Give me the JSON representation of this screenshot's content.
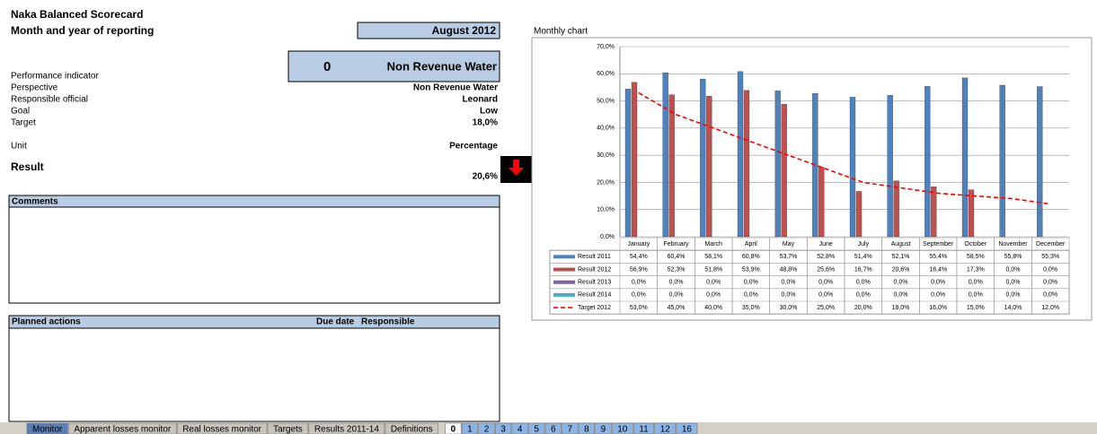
{
  "title": "Naka Balanced Scorecard",
  "period_label": "Month and year of reporting",
  "period": "August 2012",
  "indicator": {
    "number": "0",
    "name": "Non Revenue Water",
    "label": "Performance indicator"
  },
  "fields": [
    {
      "label": "Perspective",
      "value": "Non Revenue Water"
    },
    {
      "label": "Responsible official",
      "value": "Leonard"
    },
    {
      "label": "Goal",
      "value": "Low"
    },
    {
      "label": "Target",
      "value": "18,0%"
    },
    {
      "label": "Unit",
      "value": "Percentage"
    }
  ],
  "result": {
    "label": "Result",
    "value": "20,6%"
  },
  "comments": {
    "header": "Comments"
  },
  "actions": {
    "headers": [
      "Planned actions",
      "Due date",
      "Responsible"
    ]
  },
  "tabs": [
    "Monitor",
    "Apparent losses monitor",
    "Real losses monitor",
    "Targets",
    "Results 2011-14",
    "Definitions",
    "0",
    "1",
    "2",
    "3",
    "4",
    "5",
    "6",
    "7",
    "8",
    "9",
    "10",
    "11",
    "12",
    "16"
  ],
  "chart_data": {
    "type": "bar",
    "title": "Monthly chart",
    "categories": [
      "January",
      "February",
      "March",
      "April",
      "May",
      "June",
      "July",
      "August",
      "September",
      "October",
      "November",
      "December"
    ],
    "ylim": [
      0,
      70
    ],
    "yticks": [
      {
        "value": 0,
        "label": "0,0%"
      },
      {
        "value": 10,
        "label": "10,0%"
      },
      {
        "value": 20,
        "label": "20,0%"
      },
      {
        "value": 30,
        "label": "30,0%"
      },
      {
        "value": 40,
        "label": "40,0%"
      },
      {
        "value": 50,
        "label": "50,0%"
      },
      {
        "value": 60,
        "label": "60,0%"
      },
      {
        "value": 70,
        "label": "70,0%"
      }
    ],
    "grid": true,
    "series": [
      {
        "name": "Result 2011",
        "color": "#4f81bd",
        "values": [
          54.4,
          60.4,
          58.1,
          60.8,
          53.7,
          52.8,
          51.4,
          52.1,
          55.4,
          58.5,
          55.8,
          55.3
        ],
        "value_labels": [
          "54,4%",
          "60,4%",
          "58,1%",
          "60,8%",
          "53,7%",
          "52,8%",
          "51,4%",
          "52,1%",
          "55,4%",
          "58,5%",
          "55,8%",
          "55,3%"
        ]
      },
      {
        "name": "Result 2012",
        "color": "#c0504d",
        "values": [
          56.9,
          52.3,
          51.8,
          53.9,
          48.8,
          25.6,
          16.7,
          20.6,
          18.4,
          17.3,
          0,
          0
        ],
        "value_labels": [
          "56,9%",
          "52,3%",
          "51,8%",
          "53,9%",
          "48,8%",
          "25,6%",
          "16,7%",
          "20,6%",
          "18,4%",
          "17,3%",
          "0,0%",
          "0,0%"
        ]
      },
      {
        "name": "Result 2013",
        "color": "#8064a2",
        "values": [
          0,
          0,
          0,
          0,
          0,
          0,
          0,
          0,
          0,
          0,
          0,
          0
        ],
        "value_labels": [
          "0,0%",
          "0,0%",
          "0,0%",
          "0,0%",
          "0,0%",
          "0,0%",
          "0,0%",
          "0,0%",
          "0,0%",
          "0,0%",
          "0,0%",
          "0,0%"
        ]
      },
      {
        "name": "Result 2014",
        "color": "#4bacc6",
        "values": [
          0,
          0,
          0,
          0,
          0,
          0,
          0,
          0,
          0,
          0,
          0,
          0
        ],
        "value_labels": [
          "0,0%",
          "0,0%",
          "0,0%",
          "0,0%",
          "0,0%",
          "0,0%",
          "0,0%",
          "0,0%",
          "0,0%",
          "0,0%",
          "0,0%",
          "0,0%"
        ]
      },
      {
        "name": "Target 2012",
        "color": "#ff0000",
        "type": "line",
        "dashed": true,
        "values": [
          53,
          45,
          40,
          35,
          30,
          25,
          20,
          18,
          16,
          15,
          14,
          12
        ],
        "value_labels": [
          "53,0%",
          "45,0%",
          "40,0%",
          "35,0%",
          "30,0%",
          "25,0%",
          "20,0%",
          "18,0%",
          "16,0%",
          "15,0%",
          "14,0%",
          "12,0%"
        ]
      }
    ]
  }
}
